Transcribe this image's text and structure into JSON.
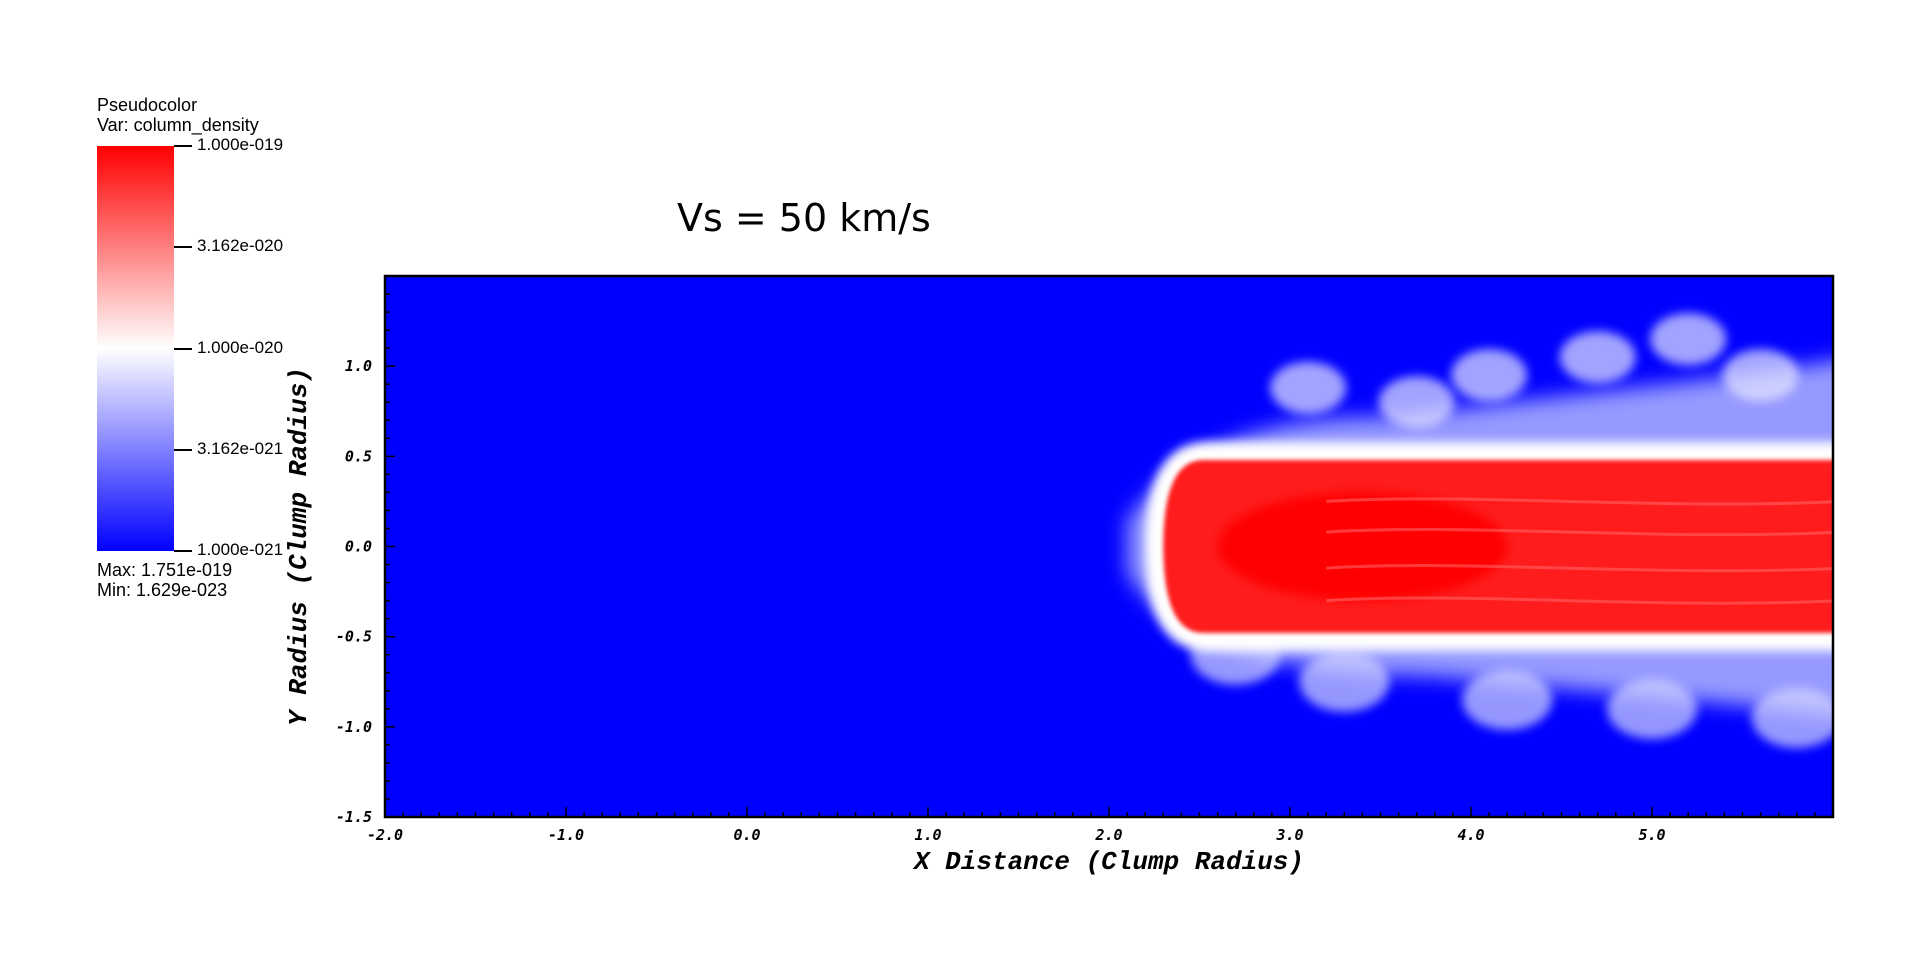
{
  "legend": {
    "plot_type": "Pseudocolor",
    "variable": "Var: column_density",
    "ticks": [
      "1.000e-019",
      "3.162e-020",
      "1.000e-020",
      "3.162e-021",
      "1.000e-021"
    ],
    "max_label": "Max:  1.751e-019",
    "min_label": "Min:  1.629e-023",
    "colors": {
      "high": "#ff0000",
      "mid": "#ffffff",
      "low": "#0000ff"
    }
  },
  "chart_data": {
    "type": "heatmap",
    "title": "Vs = 50 km/s",
    "xlabel": "X Distance (Clump Radius)",
    "ylabel": "Y Radius (Clump Radius)",
    "xlim": [
      -2.0,
      6.0
    ],
    "ylim": [
      -1.5,
      1.5
    ],
    "x_ticks": [
      -2.0,
      -1.0,
      0.0,
      1.0,
      2.0,
      3.0,
      4.0,
      5.0
    ],
    "y_ticks": [
      -1.5,
      -1.0,
      -0.5,
      0.0,
      0.5,
      1.0
    ],
    "x_tick_labels": [
      "-2.0",
      "-1.0",
      "0.0",
      "1.0",
      "2.0",
      "3.0",
      "4.0",
      "5.0"
    ],
    "y_tick_labels": [
      "-1.5",
      "-1.0",
      "-0.5",
      "0.0",
      "0.5",
      "1.0"
    ],
    "background_color": "#0000ff",
    "dense_core": {
      "x_start": 2.3,
      "x_end": 6.0,
      "y_min": -0.48,
      "y_max": 0.48
    },
    "envelope": {
      "x_start": 2.1,
      "x_end": 6.0,
      "y_min": -0.95,
      "y_max": 1.05
    }
  }
}
